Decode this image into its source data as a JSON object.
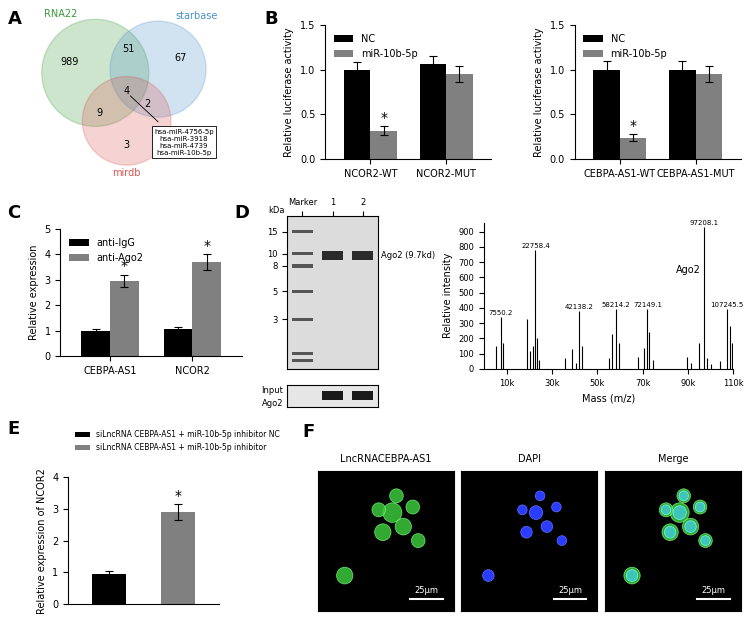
{
  "venn": {
    "panel": "A",
    "sets": [
      {
        "name": "RNA22",
        "color": "#3a9a3a"
      },
      {
        "name": "starbase",
        "color": "#4a90c8"
      },
      {
        "name": "mirdb",
        "color": "#d9534f"
      }
    ],
    "regions": [
      {
        "sets": [
          "RNA22"
        ],
        "count": 989
      },
      {
        "sets": [
          "RNA22",
          "starbase"
        ],
        "count": 51
      },
      {
        "sets": [
          "starbase"
        ],
        "count": 67
      },
      {
        "sets": [
          "RNA22",
          "mirdb"
        ],
        "count": 9
      },
      {
        "sets": [
          "RNA22",
          "starbase",
          "mirdb"
        ],
        "count": 4
      },
      {
        "sets": [
          "starbase",
          "mirdb"
        ],
        "count": 2
      },
      {
        "sets": [
          "mirdb"
        ],
        "count": 3
      }
    ],
    "shared": [
      "hsa-miR-4756-5p",
      "hsa-miR-3918",
      "hsa-miR-4739",
      "hsa-miR-10b-5p"
    ]
  },
  "chart_data": [
    {
      "panel": "B",
      "type": "bar",
      "categories": [
        "NCOR2-WT",
        "NCOR2-MUT"
      ],
      "ylabel": "Relative luciferase activity",
      "ylim": [
        0,
        1.5
      ],
      "yticks": [
        {
          "value": 0,
          "label": "0.0"
        },
        {
          "value": 0.5,
          "label": "0.5"
        },
        {
          "value": 1.0,
          "label": "1.0"
        },
        {
          "value": 1.5,
          "label": "1.5"
        }
      ],
      "legend": "upper left",
      "annotation": "*",
      "series": [
        {
          "name": "NC",
          "color": "#000000",
          "values": [
            1.0,
            1.07
          ],
          "errors": [
            0.09,
            0.09
          ],
          "significant": [
            false,
            false
          ]
        },
        {
          "name": "miR-10b-5p",
          "color": "#808080",
          "values": [
            0.32,
            0.96
          ],
          "errors": [
            0.05,
            0.09
          ],
          "significant": [
            true,
            false
          ]
        }
      ]
    },
    {
      "type": "bar",
      "categories": [
        "CEBPA-AS1-WT",
        "CEBPA-AS1-MUT"
      ],
      "ylabel": "Relative luciferase activity",
      "ylim": [
        0,
        1.5
      ],
      "yticks": [
        {
          "value": 0,
          "label": "0.0"
        },
        {
          "value": 0.5,
          "label": "0.5"
        },
        {
          "value": 1.0,
          "label": "1.0"
        },
        {
          "value": 1.5,
          "label": "1.5"
        }
      ],
      "legend": "upper left",
      "annotation": "*",
      "series": [
        {
          "name": "NC",
          "color": "#000000",
          "values": [
            1.0,
            1.0
          ],
          "errors": [
            0.1,
            0.1
          ],
          "significant": [
            false,
            false
          ]
        },
        {
          "name": "miR-10b-5p",
          "color": "#808080",
          "values": [
            0.24,
            0.95
          ],
          "errors": [
            0.04,
            0.09
          ],
          "significant": [
            true,
            false
          ]
        }
      ]
    },
    {
      "panel": "C",
      "type": "bar",
      "categories": [
        "CEBPA-AS1",
        "NCOR2"
      ],
      "ylabel": "Relative expression",
      "ylim": [
        0,
        5
      ],
      "yticks": [
        0,
        1,
        2,
        3,
        4,
        5
      ],
      "legend": "upper left",
      "annotation": "*",
      "series": [
        {
          "name": "anti-IgG",
          "color": "#000000",
          "values": [
            1.0,
            1.05
          ],
          "errors": [
            0.08,
            0.1
          ],
          "significant": [
            false,
            false
          ]
        },
        {
          "name": "anti-Ago2",
          "color": "#808080",
          "values": [
            2.95,
            3.7
          ],
          "errors": [
            0.25,
            0.3
          ],
          "significant": [
            true,
            true
          ]
        }
      ]
    },
    {
      "panel": "D",
      "type": "gel",
      "ylabel": "kDa",
      "log": "y",
      "ylim": [
        1.2,
        20
      ],
      "yticks": [
        3,
        5,
        8,
        10,
        15
      ],
      "lanes": [
        "Marker",
        "1",
        "2"
      ],
      "bands": [
        [
          15,
          10,
          8,
          5,
          3,
          1.6,
          1.4
        ],
        [
          9.7
        ],
        [
          9.7
        ]
      ],
      "annotations": [
        {
          "text": "Ago2 (9.7kd)",
          "y": 9.7
        }
      ],
      "input_blot": [
        "Input",
        "Ago2"
      ]
    },
    {
      "type": "stem",
      "xlabel": "Mass (m/z)",
      "ylabel": "Relative intensity",
      "xlim": [
        0,
        110000
      ],
      "xticks": [
        {
          "value": 10000,
          "label": "10k"
        },
        {
          "value": 30000,
          "label": "30k"
        },
        {
          "value": 50000,
          "label": "50k"
        },
        {
          "value": 70000,
          "label": "70k"
        },
        {
          "value": 90000,
          "label": "90k"
        },
        {
          "value": 110000,
          "label": "110k"
        }
      ],
      "ylim": [
        0,
        960
      ],
      "yticks": [
        0,
        100,
        200,
        300,
        400,
        500,
        600,
        700,
        800,
        900
      ],
      "color": "#000000",
      "x": [
        5500,
        7550.2,
        8500,
        19000,
        20500,
        21500,
        22758.4,
        23500,
        24500,
        36000,
        39000,
        40500,
        42138.2,
        43500,
        55000,
        56500,
        58214.2,
        59500,
        68000,
        70500,
        72149.1,
        73000,
        74500,
        89500,
        91500,
        95000,
        97208.1,
        98500,
        100000,
        104000,
        107245.5,
        108500,
        109500
      ],
      "values": [
        150,
        340,
        170,
        330,
        120,
        150,
        780,
        200,
        60,
        70,
        130,
        40,
        380,
        150,
        70,
        230,
        390,
        170,
        80,
        140,
        390,
        240,
        60,
        80,
        40,
        170,
        930,
        70,
        30,
        50,
        390,
        280,
        170
      ],
      "peak_labels": [
        {
          "x": 7550.2,
          "text": "7550.2"
        },
        {
          "x": 22758.4,
          "text": "22758.4"
        },
        {
          "x": 42138.2,
          "text": "42138.2"
        },
        {
          "x": 58214.2,
          "text": "58214.2"
        },
        {
          "x": 72149.1,
          "text": "72149.1"
        },
        {
          "x": 97208.1,
          "text": "97208.1"
        },
        {
          "x": 107245.5,
          "text": "107245.5"
        }
      ],
      "annotations": [
        {
          "x": 97208.1,
          "text": "Ago2"
        }
      ]
    },
    {
      "panel": "E",
      "type": "bar",
      "categories": [
        null,
        null
      ],
      "ylabel": "Relative expression of NCOR2",
      "ylim": [
        0,
        4
      ],
      "yticks": [
        0,
        1,
        2,
        3,
        4
      ],
      "legend": "upper left",
      "annotation": "*",
      "tick_labels": "y",
      "series": [
        {
          "name": "siLncRNA CEBPA-AS1 + miR-10b-5p inhibitor NC",
          "color": "#000000",
          "values": [
            0.96,
            null
          ],
          "errors": [
            0.08,
            null
          ],
          "significant": [
            false,
            null
          ]
        },
        {
          "name": "siLncRNA CEBPA-AS1 + miR-10b-5p inhibitor",
          "color": "#808080",
          "values": [
            null,
            2.9
          ],
          "errors": [
            null,
            0.25
          ],
          "significant": [
            null,
            true
          ]
        }
      ]
    }
  ],
  "images": {
    "panel": "F",
    "titles": [
      "LncRNACEBPA-AS1",
      "DAPI",
      "Merge"
    ],
    "scale_bar": "25μm"
  }
}
